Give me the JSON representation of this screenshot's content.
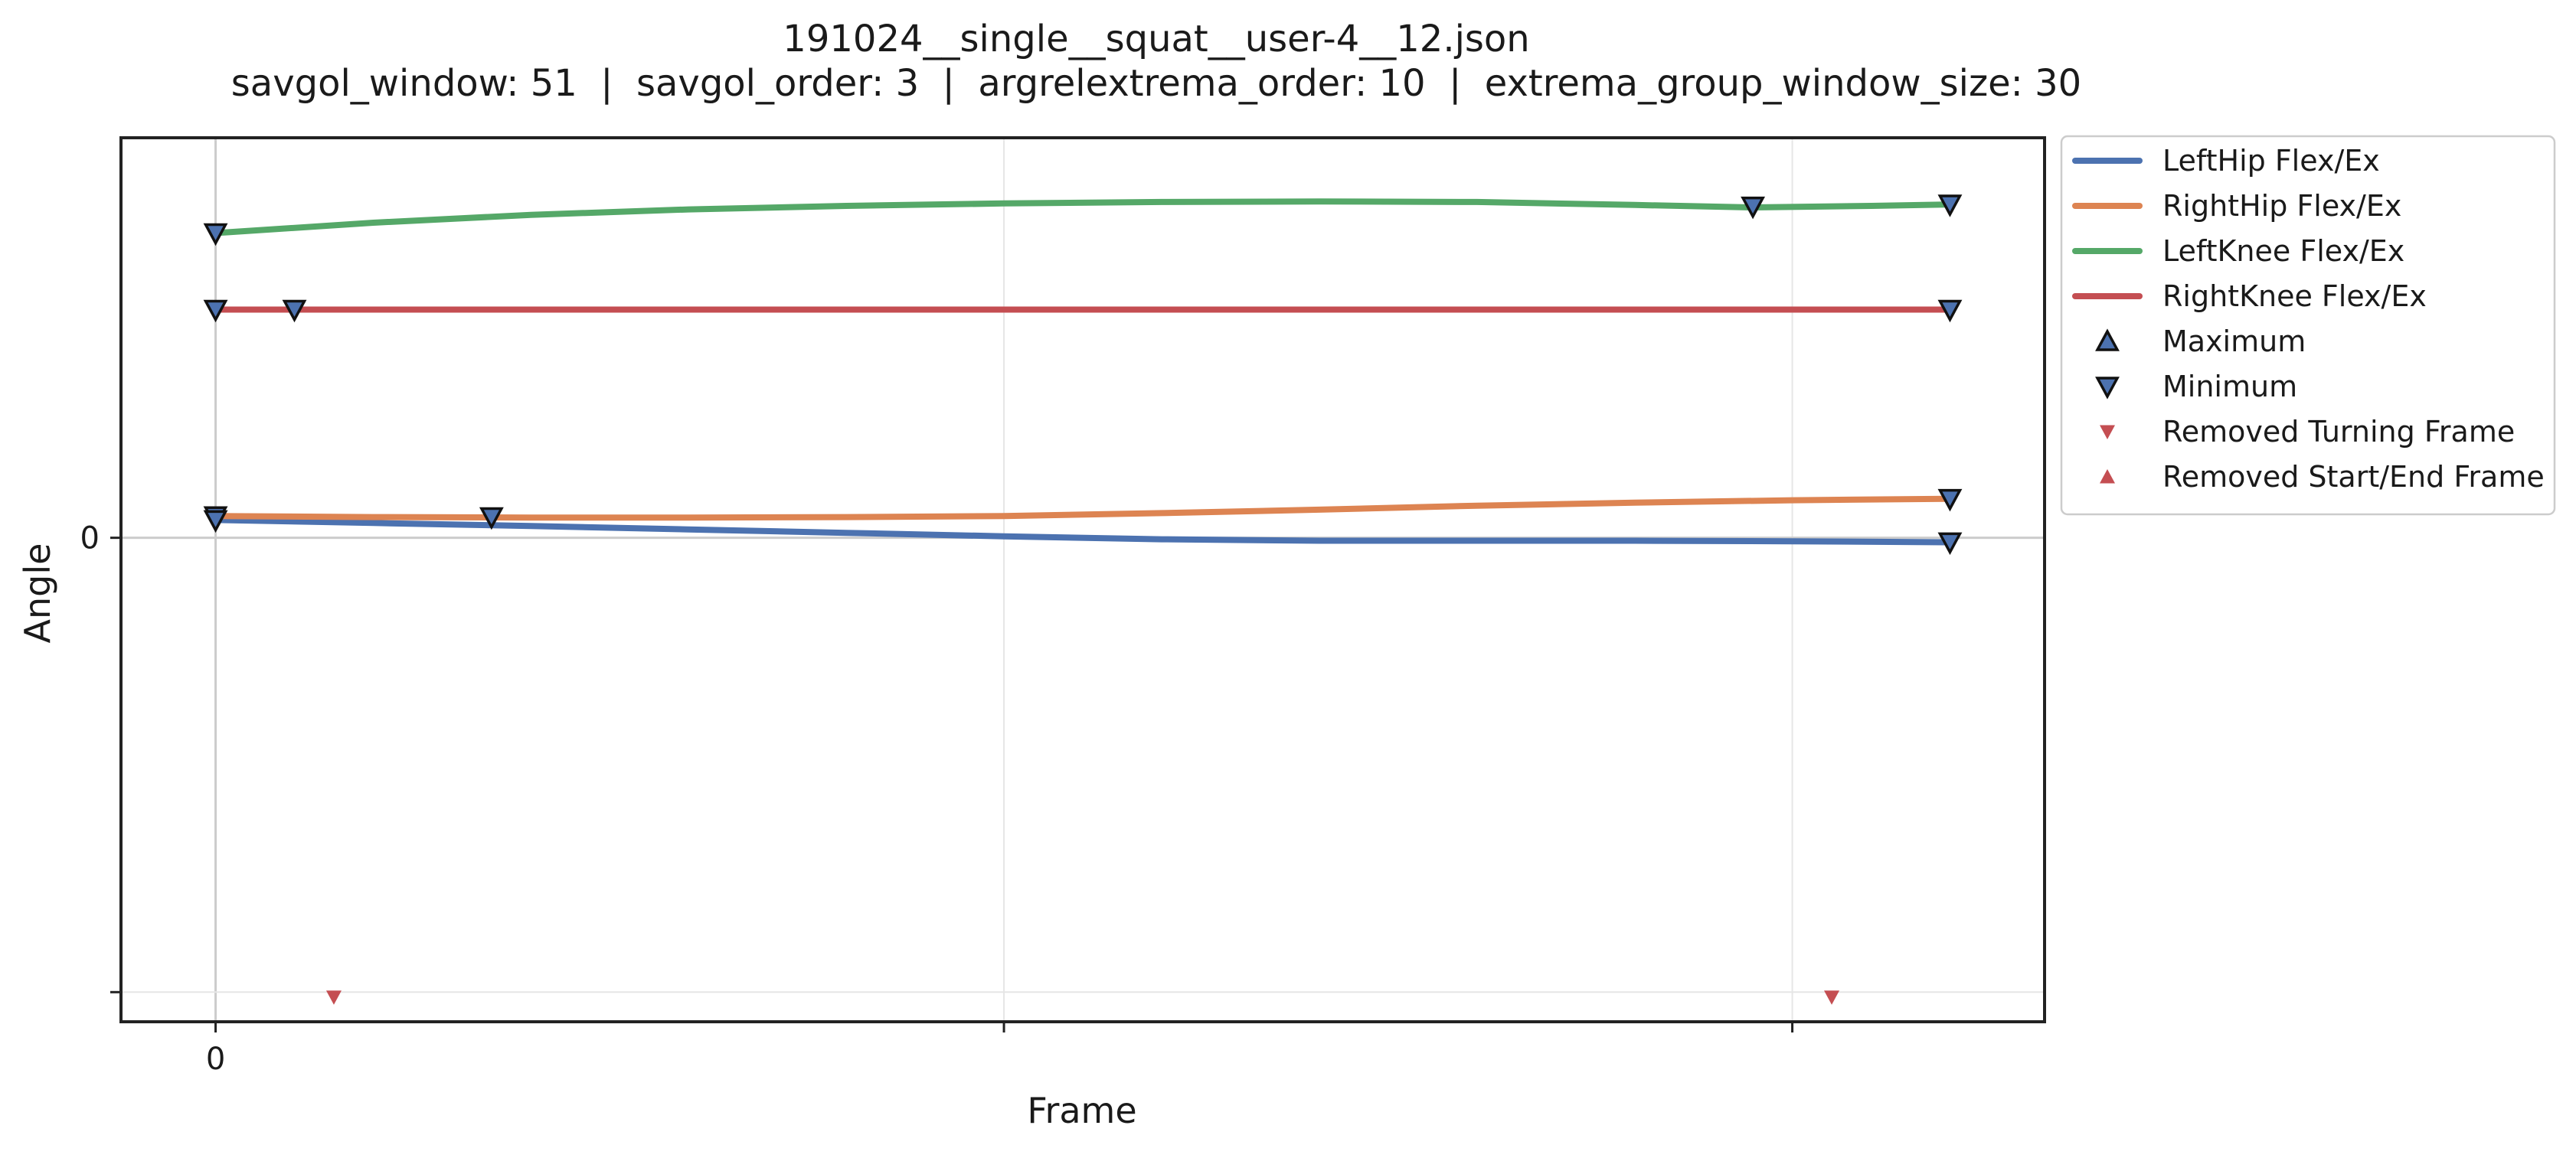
{
  "chart_data": {
    "type": "line",
    "title": "191024__single__squat__user-4__12.json",
    "subtitle": "savgol_window: 51  |  savgol_order: 3  |  argrelextrema_order: 10  |  extrema_group_window_size: 30",
    "xlabel": "Frame",
    "ylabel": "Angle",
    "xlim": [
      -12,
      232
    ],
    "ylim": [
      -0.98,
      0.81
    ],
    "x_ticks": [
      0,
      100,
      200
    ],
    "x_tick_labels": [
      "0",
      "",
      ""
    ],
    "y_ticks": [
      0,
      -0.92
    ],
    "y_tick_labels": [
      "0",
      ""
    ],
    "grid": true,
    "legend_position": "outside-right",
    "series": [
      {
        "name": "LeftHip Flex/Ex",
        "color": "#4c72b0",
        "x": [
          0,
          20,
          40,
          60,
          80,
          100,
          120,
          140,
          160,
          180,
          200,
          220
        ],
        "y": [
          0.036,
          0.03,
          0.024,
          0.017,
          0.01,
          0.003,
          -0.003,
          -0.006,
          -0.006,
          -0.006,
          -0.007,
          -0.009
        ]
      },
      {
        "name": "RightHip Flex/Ex",
        "color": "#dd8452",
        "x": [
          0,
          20,
          40,
          60,
          80,
          100,
          120,
          140,
          160,
          180,
          200,
          220
        ],
        "y": [
          0.044,
          0.042,
          0.041,
          0.041,
          0.042,
          0.044,
          0.05,
          0.057,
          0.065,
          0.071,
          0.076,
          0.079
        ]
      },
      {
        "name": "LeftKnee Flex/Ex",
        "color": "#55a868",
        "x": [
          0,
          20,
          40,
          60,
          80,
          100,
          120,
          140,
          160,
          180,
          195,
          210,
          220
        ],
        "y": [
          0.617,
          0.638,
          0.654,
          0.665,
          0.672,
          0.677,
          0.68,
          0.681,
          0.68,
          0.674,
          0.669,
          0.672,
          0.675
        ]
      },
      {
        "name": "RightKnee Flex/Ex",
        "color": "#c44e52",
        "x": [
          0,
          40,
          80,
          120,
          160,
          200,
          220
        ],
        "y": [
          0.462,
          0.462,
          0.462,
          0.462,
          0.462,
          0.462,
          0.462
        ]
      }
    ],
    "minima": [
      {
        "x": 0,
        "y": 0.617
      },
      {
        "x": 195,
        "y": 0.671
      },
      {
        "x": 220,
        "y": 0.675
      },
      {
        "x": 0,
        "y": 0.462
      },
      {
        "x": 10,
        "y": 0.462
      },
      {
        "x": 220,
        "y": 0.462
      },
      {
        "x": 0,
        "y": 0.044
      },
      {
        "x": 0,
        "y": 0.036
      },
      {
        "x": 35,
        "y": 0.042
      },
      {
        "x": 220,
        "y": 0.079
      },
      {
        "x": 220,
        "y": -0.009
      }
    ],
    "maxima": [],
    "removed_turning_frames": [
      {
        "x": 15,
        "y": -0.93
      },
      {
        "x": 205,
        "y": -0.93
      }
    ],
    "removed_start_end_frames": [],
    "legend": [
      {
        "label": "LeftHip Flex/Ex",
        "kind": "line",
        "color": "#4c72b0"
      },
      {
        "label": "RightHip Flex/Ex",
        "kind": "line",
        "color": "#dd8452"
      },
      {
        "label": "LeftKnee Flex/Ex",
        "kind": "line",
        "color": "#55a868"
      },
      {
        "label": "RightKnee Flex/Ex",
        "kind": "line",
        "color": "#c44e52"
      },
      {
        "label": "Maximum",
        "kind": "marker-up",
        "color": "#4c72b0"
      },
      {
        "label": "Minimum",
        "kind": "marker-down",
        "color": "#4c72b0"
      },
      {
        "label": "Removed Turning Frame",
        "kind": "marker-down-small",
        "color": "#c44e52"
      },
      {
        "label": "Removed Start/End Frame",
        "kind": "marker-up-small",
        "color": "#c44e52"
      }
    ]
  }
}
